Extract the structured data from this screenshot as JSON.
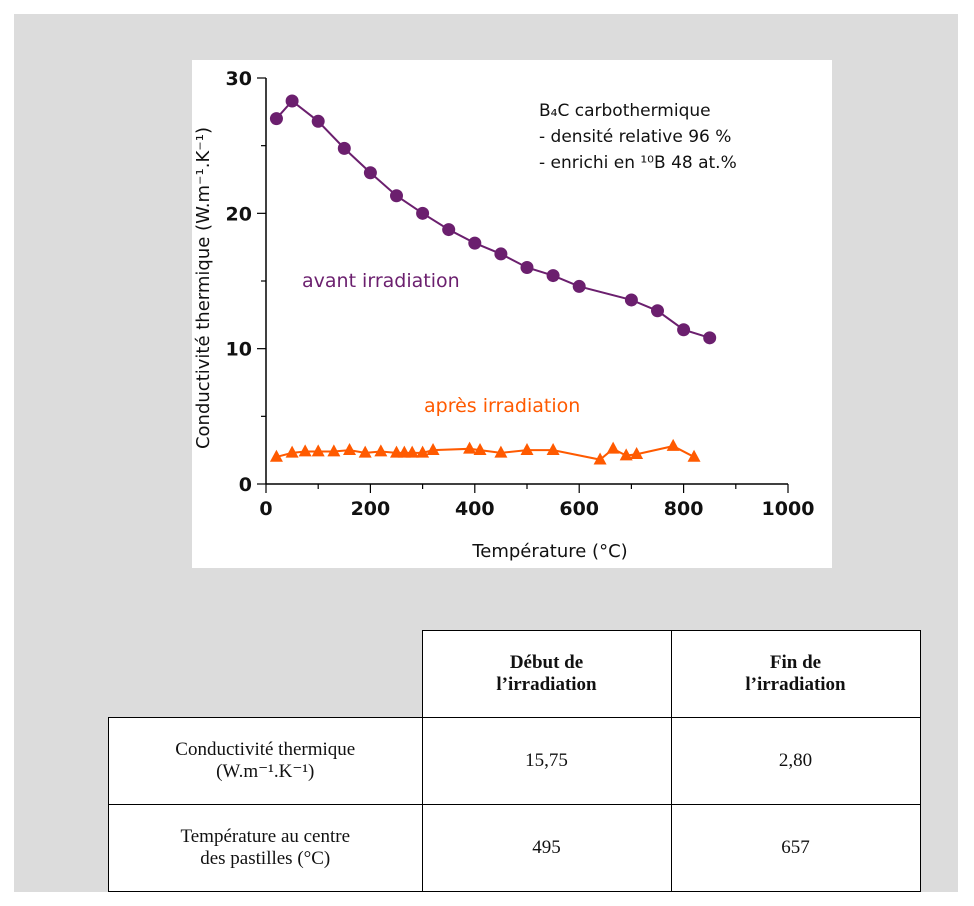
{
  "chart_data": {
    "type": "line",
    "xlabel": "Température (°C)",
    "ylabel": "Conductivité thermique (W.m⁻¹.K⁻¹)",
    "xlim": [
      0,
      1000
    ],
    "ylim": [
      0,
      30
    ],
    "xticks": [
      0,
      200,
      400,
      600,
      800,
      1000
    ],
    "yticks": [
      0,
      10,
      20,
      30
    ],
    "grid": false,
    "annotation": {
      "line1": "B₄C carbothermique",
      "line2": "- densité relative 96 %",
      "line3": "- enrichi en ¹⁰B 48 at.%"
    },
    "series": [
      {
        "name": "avant irradiation",
        "color": "#6b1f6e",
        "marker": "circle",
        "x": [
          20,
          50,
          100,
          150,
          200,
          250,
          300,
          350,
          400,
          450,
          500,
          550,
          600,
          700,
          750,
          800,
          850
        ],
        "y": [
          27.0,
          28.3,
          26.8,
          24.8,
          23.0,
          21.3,
          20.0,
          18.8,
          17.8,
          17.0,
          16.0,
          15.4,
          14.6,
          13.6,
          12.8,
          11.4,
          10.8
        ]
      },
      {
        "name": "après irradiation",
        "color": "#ff5a00",
        "marker": "triangle",
        "x": [
          20,
          50,
          75,
          100,
          130,
          160,
          190,
          220,
          250,
          265,
          280,
          300,
          320,
          390,
          410,
          450,
          500,
          550,
          640,
          665,
          690,
          710,
          780,
          820
        ],
        "y": [
          2.0,
          2.3,
          2.4,
          2.4,
          2.4,
          2.5,
          2.3,
          2.4,
          2.3,
          2.3,
          2.3,
          2.3,
          2.5,
          2.6,
          2.5,
          2.3,
          2.5,
          2.5,
          1.8,
          2.6,
          2.1,
          2.2,
          2.8,
          2.0
        ]
      }
    ]
  },
  "table": {
    "headers": [
      "",
      "Début de l’irradiation",
      "Fin de l’irradiation"
    ],
    "header_lines": {
      "debut_1": "Début de",
      "debut_2": "l’irradiation",
      "fin_1": "Fin de",
      "fin_2": "l’irradiation"
    },
    "rows": [
      {
        "label_1": "Conductivité thermique",
        "label_2": "(W.m⁻¹.K⁻¹)",
        "debut": "15,75",
        "fin": "2,80"
      },
      {
        "label_1": "Température au centre",
        "label_2": "des pastilles (°C)",
        "debut": "495",
        "fin": "657"
      }
    ]
  }
}
